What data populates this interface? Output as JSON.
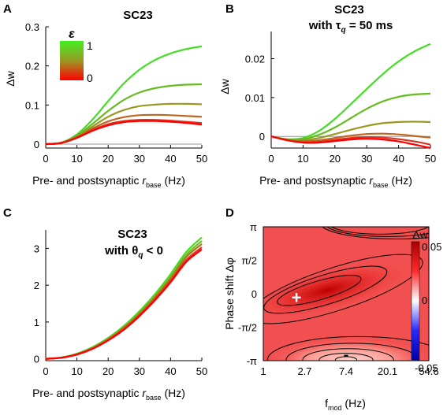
{
  "panels": [
    {
      "letter": "A",
      "title": [
        "SC23"
      ],
      "xlabel": "Pre- and postsynaptic r_base (Hz)",
      "ylabel": "Δw",
      "legend": {
        "symbol": "ε",
        "top": "1",
        "bottom": "0"
      }
    },
    {
      "letter": "B",
      "title": [
        "SC23",
        "with τq = 50 ms"
      ],
      "xlabel": "Pre- and postsynaptic r_base (Hz)",
      "ylabel": "Δw"
    },
    {
      "letter": "C",
      "title": [
        "SC23",
        "with θq < 0"
      ],
      "xlabel": "Pre- and postsynaptic r_base (Hz)",
      "ylabel": ""
    },
    {
      "letter": "D",
      "title": [],
      "xlabel": "f_mod (Hz)",
      "ylabel": "Phase shift Δφ",
      "colorbar": {
        "label": "Δw",
        "ticks": [
          "0.05",
          "0",
          "-0.05"
        ]
      },
      "annotations": [
        "+",
        "-"
      ]
    }
  ],
  "chart_data": [
    {
      "type": "line",
      "panel": "A",
      "title": "SC23",
      "xlabel": "Pre- and postsynaptic r_base (Hz)",
      "ylabel": "Δw",
      "xlim": [
        0,
        50
      ],
      "ylim": [
        -0.01,
        0.3
      ],
      "xticks": [
        0,
        10,
        20,
        30,
        40,
        50
      ],
      "yticks": [
        0,
        0.1,
        0.2,
        0.3
      ],
      "ytick_labels": [
        "0",
        "0.1",
        "0.2",
        "0.3"
      ],
      "x": [
        0,
        5,
        10,
        15,
        20,
        25,
        30,
        35,
        40,
        45,
        50
      ],
      "series": [
        {
          "values": [
            0,
            0.004,
            0.025,
            0.063,
            0.11,
            0.155,
            0.19,
            0.215,
            0.232,
            0.243,
            0.25
          ],
          "color": "#44dd22"
        },
        {
          "values": [
            0,
            0.004,
            0.022,
            0.052,
            0.085,
            0.113,
            0.132,
            0.143,
            0.149,
            0.152,
            0.153
          ],
          "color": "#66bb22"
        },
        {
          "values": [
            0,
            0.003,
            0.02,
            0.045,
            0.07,
            0.087,
            0.097,
            0.101,
            0.103,
            0.103,
            0.102
          ],
          "color": "#999922"
        },
        {
          "values": [
            0,
            0.003,
            0.018,
            0.04,
            0.058,
            0.069,
            0.074,
            0.075,
            0.074,
            0.072,
            0.07
          ],
          "color": "#bb6622"
        },
        {
          "values": [
            0,
            0.003,
            0.017,
            0.036,
            0.051,
            0.059,
            0.062,
            0.062,
            0.06,
            0.057,
            0.054
          ],
          "color": "#dd3322"
        },
        {
          "values": [
            0,
            0.003,
            0.016,
            0.034,
            0.048,
            0.056,
            0.059,
            0.059,
            0.057,
            0.054,
            0.05
          ],
          "color": "#ff0000"
        }
      ],
      "legend": {
        "type": "colorbar",
        "label": "ε",
        "range": [
          0,
          1
        ],
        "placement": "top-left"
      },
      "grid": false
    },
    {
      "type": "line",
      "panel": "B",
      "title": "SC23 with τq = 50 ms",
      "xlabel": "Pre- and postsynaptic r_base (Hz)",
      "ylabel": "Δw",
      "xlim": [
        0,
        50
      ],
      "ylim": [
        -0.003,
        0.027
      ],
      "xticks": [
        0,
        10,
        20,
        30,
        40,
        50
      ],
      "yticks": [
        0,
        0.01,
        0.02
      ],
      "ytick_labels": [
        "0",
        "0.01",
        "0.02"
      ],
      "x": [
        0,
        5,
        10,
        15,
        20,
        25,
        30,
        35,
        40,
        45,
        50
      ],
      "series": [
        {
          "values": [
            0,
            -0.0007,
            -0.0004,
            0.0014,
            0.0045,
            0.0083,
            0.0122,
            0.016,
            0.0193,
            0.0219,
            0.0238
          ],
          "color": "#44dd22"
        },
        {
          "values": [
            0,
            -0.0008,
            -0.0007,
            0.0004,
            0.0023,
            0.0047,
            0.0071,
            0.009,
            0.0102,
            0.0108,
            0.011
          ],
          "color": "#66bb22"
        },
        {
          "values": [
            0,
            -0.0009,
            -0.001,
            -0.0004,
            0.0006,
            0.0017,
            0.0027,
            0.0034,
            0.0037,
            0.0038,
            0.0037
          ],
          "color": "#999922"
        },
        {
          "values": [
            0,
            -0.0009,
            -0.0013,
            -0.001,
            -0.0004,
            0.0002,
            0.0006,
            0.0007,
            0.0005,
            0.0001,
            -0.0003
          ],
          "color": "#bb6622"
        },
        {
          "values": [
            0,
            -0.001,
            -0.0015,
            -0.0014,
            -0.0009,
            -0.0004,
            -0.0002,
            -0.0003,
            -0.0007,
            -0.0013,
            -0.0021
          ],
          "color": "#dd3322"
        },
        {
          "values": [
            0,
            -0.001,
            -0.0016,
            -0.0016,
            -0.0012,
            -0.0008,
            -0.0006,
            -0.0008,
            -0.0013,
            -0.0021,
            -0.003
          ],
          "color": "#ff0000"
        }
      ],
      "grid": false
    },
    {
      "type": "line",
      "panel": "C",
      "title": "SC23 with θq < 0",
      "xlabel": "Pre- and postsynaptic r_base (Hz)",
      "ylabel": "",
      "xlim": [
        0,
        50
      ],
      "ylim": [
        -0.05,
        3.5
      ],
      "xticks": [
        0,
        10,
        20,
        30,
        40,
        50
      ],
      "yticks": [
        0,
        1,
        2,
        3
      ],
      "ytick_labels": [
        "0",
        "1",
        "2",
        "3"
      ],
      "x": [
        0,
        5,
        10,
        15,
        20,
        25,
        30,
        35,
        40,
        45,
        50
      ],
      "series": [
        {
          "values": [
            0,
            0.035,
            0.14,
            0.32,
            0.57,
            0.89,
            1.29,
            1.76,
            2.3,
            2.9,
            3.3
          ],
          "color": "#44dd22"
        },
        {
          "values": [
            0,
            0.033,
            0.13,
            0.3,
            0.55,
            0.86,
            1.25,
            1.71,
            2.23,
            2.82,
            3.2
          ],
          "color": "#77bb22"
        },
        {
          "values": [
            0,
            0.032,
            0.125,
            0.29,
            0.53,
            0.84,
            1.22,
            1.67,
            2.18,
            2.76,
            3.12
          ],
          "color": "#aa7722"
        },
        {
          "values": [
            0,
            0.031,
            0.12,
            0.28,
            0.51,
            0.81,
            1.18,
            1.62,
            2.12,
            2.68,
            3.03
          ],
          "color": "#dd3322"
        },
        {
          "values": [
            0,
            0.03,
            0.115,
            0.27,
            0.5,
            0.79,
            1.16,
            1.59,
            2.08,
            2.63,
            2.97
          ],
          "color": "#ff0000"
        }
      ],
      "grid": false
    },
    {
      "type": "heatmap",
      "panel": "D",
      "xlabel": "f_mod (Hz)",
      "ylabel": "Phase shift Δφ",
      "x_tick_labels": [
        "1",
        "2.7",
        "7.4",
        "20.1",
        "54.6"
      ],
      "x_log_range": [
        0,
        4
      ],
      "y_tick_labels": [
        "π",
        "π/2",
        "0",
        "-π/2",
        "-π"
      ],
      "y_range_pi": [
        -1,
        1
      ],
      "colorbar": {
        "label": "Δw",
        "range": [
          -0.05,
          0.05
        ],
        "ticks": [
          "0.05",
          "0",
          "-0.05"
        ],
        "low": "#0000cc",
        "mid": "#ffffff",
        "high": "#cc0000"
      },
      "maximum": {
        "label": "+",
        "log_f": 0.8,
        "phase_pi": -0.05
      },
      "minimum": {
        "label": "-",
        "log_f": 2.0,
        "phase_pi": -0.92
      },
      "contours": [
        {
          "level": 0.047,
          "cx": 1.35,
          "cy": 0.05,
          "rx": 1.05,
          "ry": 0.14,
          "tilt": 0.18
        },
        {
          "level": 0.044,
          "cx": 1.5,
          "cy": 0.06,
          "rx": 1.55,
          "ry": 0.22,
          "tilt": 0.19
        },
        {
          "level": 0.041,
          "cx": 1.75,
          "cy": 0.07,
          "rx": 2.2,
          "ry": 0.32,
          "tilt": 0.2
        },
        {
          "level": 0.026,
          "cx": 2.0,
          "cy": -0.99,
          "rx": 0.26,
          "ry": 0.05,
          "tilt": 0
        },
        {
          "level": 0.028,
          "cx": 2.0,
          "cy": -0.99,
          "rx": 0.65,
          "ry": 0.1,
          "tilt": 0
        },
        {
          "level": 0.031,
          "cx": 2.05,
          "cy": -0.99,
          "rx": 1.1,
          "ry": 0.17,
          "tilt": 0
        },
        {
          "level": 0.034,
          "cx": 2.15,
          "cy": -0.99,
          "rx": 1.6,
          "ry": 0.25,
          "tilt": 0
        },
        {
          "level": 0.037,
          "cx": 2.3,
          "cy": -0.99,
          "rx": 2.2,
          "ry": 0.35,
          "tilt": 0
        }
      ],
      "grid": false
    }
  ]
}
